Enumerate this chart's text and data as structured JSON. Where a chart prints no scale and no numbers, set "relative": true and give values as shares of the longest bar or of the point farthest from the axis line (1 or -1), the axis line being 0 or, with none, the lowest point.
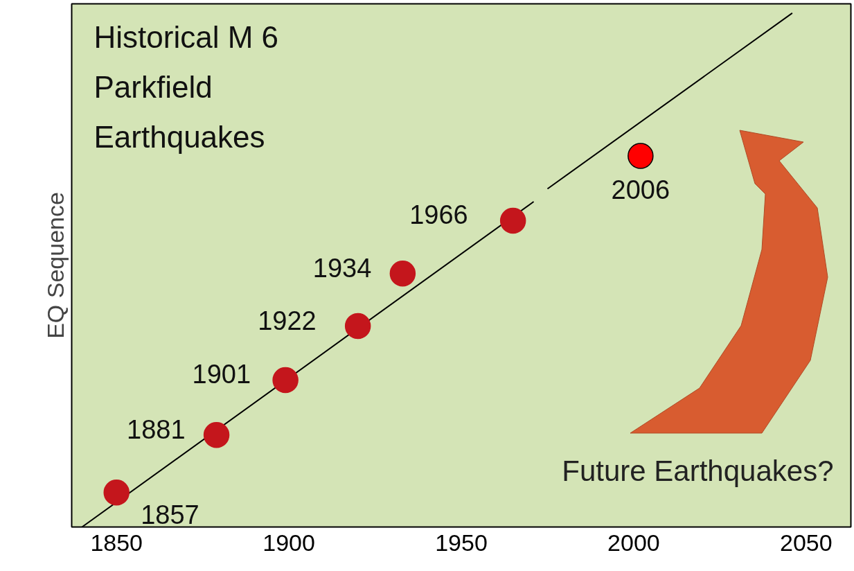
{
  "chart_data": {
    "type": "scatter",
    "title": "Historical M 6\nParkfield\nEarthquakes",
    "ylabel": "EQ Sequence",
    "relative": true,
    "xlim": [
      1837,
      2063
    ],
    "xticks": [
      1850,
      1900,
      1950,
      2000,
      2050
    ],
    "grid": false,
    "annotations": [
      "Future Earthquakes?",
      {
        "text": "1857",
        "x": 1850,
        "y": 0.067
      },
      {
        "text": "1881",
        "x": 1879,
        "y": 0.179
      },
      {
        "text": "1901",
        "x": 1899,
        "y": 0.286
      },
      {
        "text": "1922",
        "x": 1920,
        "y": 0.391
      },
      {
        "text": "1934",
        "x": 1933,
        "y": 0.493
      },
      {
        "text": "1966",
        "x": 1965,
        "y": 0.596
      },
      {
        "text": "2006",
        "x": 2002,
        "y": 0.722
      }
    ],
    "series": [
      {
        "type": "line",
        "color": "#000000",
        "x": [
          1840,
          1971,
          1973,
          1975,
          2046
        ],
        "values": [
          0,
          0.633,
          null,
          0.658,
          1
        ]
      },
      {
        "marker": "circle",
        "x": [
          1850,
          1879,
          1899,
          1920,
          1933,
          1965,
          2002
        ],
        "values": [
          0.067,
          0.179,
          0.286,
          0.391,
          0.493,
          0.596,
          0.722
        ],
        "colors": [
          "#c4161c",
          "#c4161c",
          "#c4161c",
          "#c4161c",
          "#c4161c",
          "#c4161c",
          "#ff0000"
        ]
      }
    ]
  }
}
